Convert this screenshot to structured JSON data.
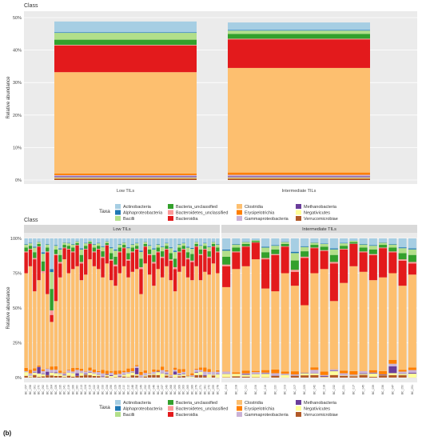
{
  "colors": {
    "Actinobacteria": "#a6cee3",
    "Alphaproteobacteria": "#1f78b4",
    "Bacilli": "#b2df8a",
    "Bacteria_unclassified": "#33a02c",
    "Bacteroidetes_unclassified": "#fb9a99",
    "Bacteroidia": "#e31a1c",
    "Clostridia": "#fdbf6f",
    "Erysipelotrichia": "#ff7f00",
    "Gammaproteobacteria": "#cab2d6",
    "Methanobacteria": "#6a3d9a",
    "Negativicutes": "#ffff99",
    "Verrucomicrobiae": "#b15928",
    "strip": "#d9d9d9",
    "panel": "#ebebeb"
  },
  "figure": {
    "panel_label": "(b)"
  },
  "chart_data": [
    {
      "type": "bar",
      "stacked": true,
      "title": "Class",
      "xlabel": "",
      "ylabel": "Relative abundance",
      "ylim": [
        0,
        0.5
      ],
      "yticks": [
        "0%",
        "10%",
        "20%",
        "30%",
        "40%",
        "50%"
      ],
      "categories": [
        "Low TILs",
        "Intermediate TILs"
      ],
      "legend": {
        "title": "Taxa",
        "position": "bottom",
        "entries": [
          "Actinobacteria",
          "Alphaproteobacteria",
          "Bacilli",
          "Bacteria_unclassified",
          "Bacteroidetes_unclassified",
          "Bacteroidia",
          "Clostridia",
          "Erysipelotrichia",
          "Gammaproteobacteria",
          "Methanobacteria",
          "Negativicutes",
          "Verrucomicrobiae"
        ]
      },
      "series": [
        {
          "name": "Verrucomicrobiae",
          "values": [
            0.005,
            0.005
          ]
        },
        {
          "name": "Negativicutes",
          "values": [
            0.003,
            0.003
          ]
        },
        {
          "name": "Methanobacteria",
          "values": [
            0.003,
            0.003
          ]
        },
        {
          "name": "Gammaproteobacteria",
          "values": [
            0.004,
            0.005
          ]
        },
        {
          "name": "Erysipelotrichia",
          "values": [
            0.005,
            0.007
          ]
        },
        {
          "name": "Clostridia",
          "values": [
            0.312,
            0.322
          ]
        },
        {
          "name": "Bacteroidia",
          "values": [
            0.082,
            0.088
          ]
        },
        {
          "name": "Bacteroidetes_unclassified",
          "values": [
            0.002,
            0.002
          ]
        },
        {
          "name": "Bacteria_unclassified",
          "values": [
            0.016,
            0.015
          ]
        },
        {
          "name": "Bacilli",
          "values": [
            0.021,
            0.01
          ]
        },
        {
          "name": "Alphaproteobacteria",
          "values": [
            0.002,
            0.002
          ]
        },
        {
          "name": "Actinobacteria",
          "values": [
            0.033,
            0.023
          ]
        }
      ]
    },
    {
      "type": "bar",
      "stacked": true,
      "title": "Class",
      "xlabel": "",
      "ylabel": "Relative abundance",
      "ylim": [
        0,
        1.0
      ],
      "yticks": [
        "0%",
        "25%",
        "50%",
        "75%",
        "100%"
      ],
      "facets": [
        {
          "label": "Low TILs",
          "samples": 46
        },
        {
          "label": "Intermediate TILs",
          "samples": 20
        }
      ],
      "legend": {
        "title": "Taxa",
        "position": "bottom",
        "entries": [
          "Actinobacteria",
          "Alphaproteobacteria",
          "Bacilli",
          "Bacteria_unclassified",
          "Bacteroidetes_unclassified",
          "Bacteroidia",
          "Clostridia",
          "Erysipelotrichia",
          "Gammaproteobacteria",
          "Methanobacteria",
          "Negativicutes",
          "Verrucomicrobiae"
        ]
      },
      "stack_order": [
        "Verrucomicrobiae",
        "Negativicutes",
        "Methanobacteria",
        "Gammaproteobacteria",
        "Erysipelotrichia",
        "Clostridia",
        "Bacteroidia",
        "Bacteroidetes_unclassified",
        "Bacteria_unclassified",
        "Bacilli",
        "Alphaproteobacteria",
        "Actinobacteria"
      ],
      "sample_tops": {
        "Low TILs": {
          "Clostridia": [
            0.75,
            0.8,
            0.62,
            0.7,
            0.75,
            0.6,
            0.4,
            0.55,
            0.72,
            0.85,
            0.75,
            0.78,
            0.8,
            0.7,
            0.74,
            0.85,
            0.8,
            0.78,
            0.72,
            0.82,
            0.7,
            0.66,
            0.75,
            0.8,
            0.72,
            0.76,
            0.78,
            0.6,
            0.82,
            0.74,
            0.66,
            0.78,
            0.72,
            0.8,
            0.7,
            0.62,
            0.76,
            0.8,
            0.72,
            0.7,
            0.8,
            0.7,
            0.76,
            0.74,
            0.82,
            0.75
          ],
          "Bacteroidia": [
            0.9,
            0.92,
            0.85,
            0.94,
            0.55,
            0.9,
            0.45,
            0.88,
            0.82,
            0.93,
            0.92,
            0.9,
            0.95,
            0.82,
            0.92,
            0.96,
            0.9,
            0.92,
            0.86,
            0.95,
            0.84,
            0.8,
            0.9,
            0.93,
            0.84,
            0.9,
            0.92,
            0.78,
            0.94,
            0.88,
            0.82,
            0.9,
            0.86,
            0.92,
            0.84,
            0.78,
            0.9,
            0.92,
            0.85,
            0.83,
            0.94,
            0.88,
            0.92,
            0.86,
            0.94,
            0.9
          ]
        },
        "Intermediate TILs": {
          "Clostridia": [
            0.65,
            0.78,
            0.8,
            0.85,
            0.64,
            0.62,
            0.75,
            0.66,
            0.52,
            0.75,
            0.78,
            0.55,
            0.68,
            0.8,
            0.76,
            0.7,
            0.72,
            0.75,
            0.66,
            0.74
          ],
          "Bacteroidia": [
            0.8,
            0.9,
            0.94,
            0.97,
            0.85,
            0.88,
            0.94,
            0.76,
            0.86,
            0.93,
            0.91,
            0.82,
            0.92,
            0.96,
            0.9,
            0.88,
            0.93,
            0.9,
            0.84,
            0.82
          ]
        }
      },
      "sample_labels": {
        "Low TILs": [
          "BC_057",
          "BC_058",
          "BC_061",
          "BC_070",
          "BC_092",
          "BC_077",
          "BC_064",
          "BC_026",
          "BC_035",
          "BC_041",
          "BC_019",
          "BC_066",
          "BC_060",
          "BC_013",
          "BC_024",
          "BC_015",
          "BC_022",
          "BC_062",
          "BC_033",
          "BC_034",
          "BC_056",
          "BC_029",
          "BC_028",
          "BC_010",
          "BC_012",
          "BC_048",
          "BC_054",
          "BC_049",
          "BC_052",
          "BC_059",
          "BC_046",
          "BC_040",
          "BC_037",
          "BC_043",
          "BC_068",
          "BC_093",
          "BC_069",
          "BC_063",
          "BC_065",
          "BC_089",
          "BC_079",
          "BC_071",
          "BC_081",
          "BC_072",
          "BC_055",
          "BC_078"
        ],
        "Intermediate TILs": [
          "BC_004",
          "BC_008",
          "BC_011",
          "BC_006",
          "BC_016",
          "BC_020",
          "BC_003",
          "BC_007",
          "BC_023",
          "BC_042",
          "BC_018",
          "BC_032",
          "BC_031",
          "BC_017",
          "BC_045",
          "BC_039",
          "BC_036",
          "BC_047",
          "BC_050",
          "BC_051"
        ]
      }
    }
  ]
}
